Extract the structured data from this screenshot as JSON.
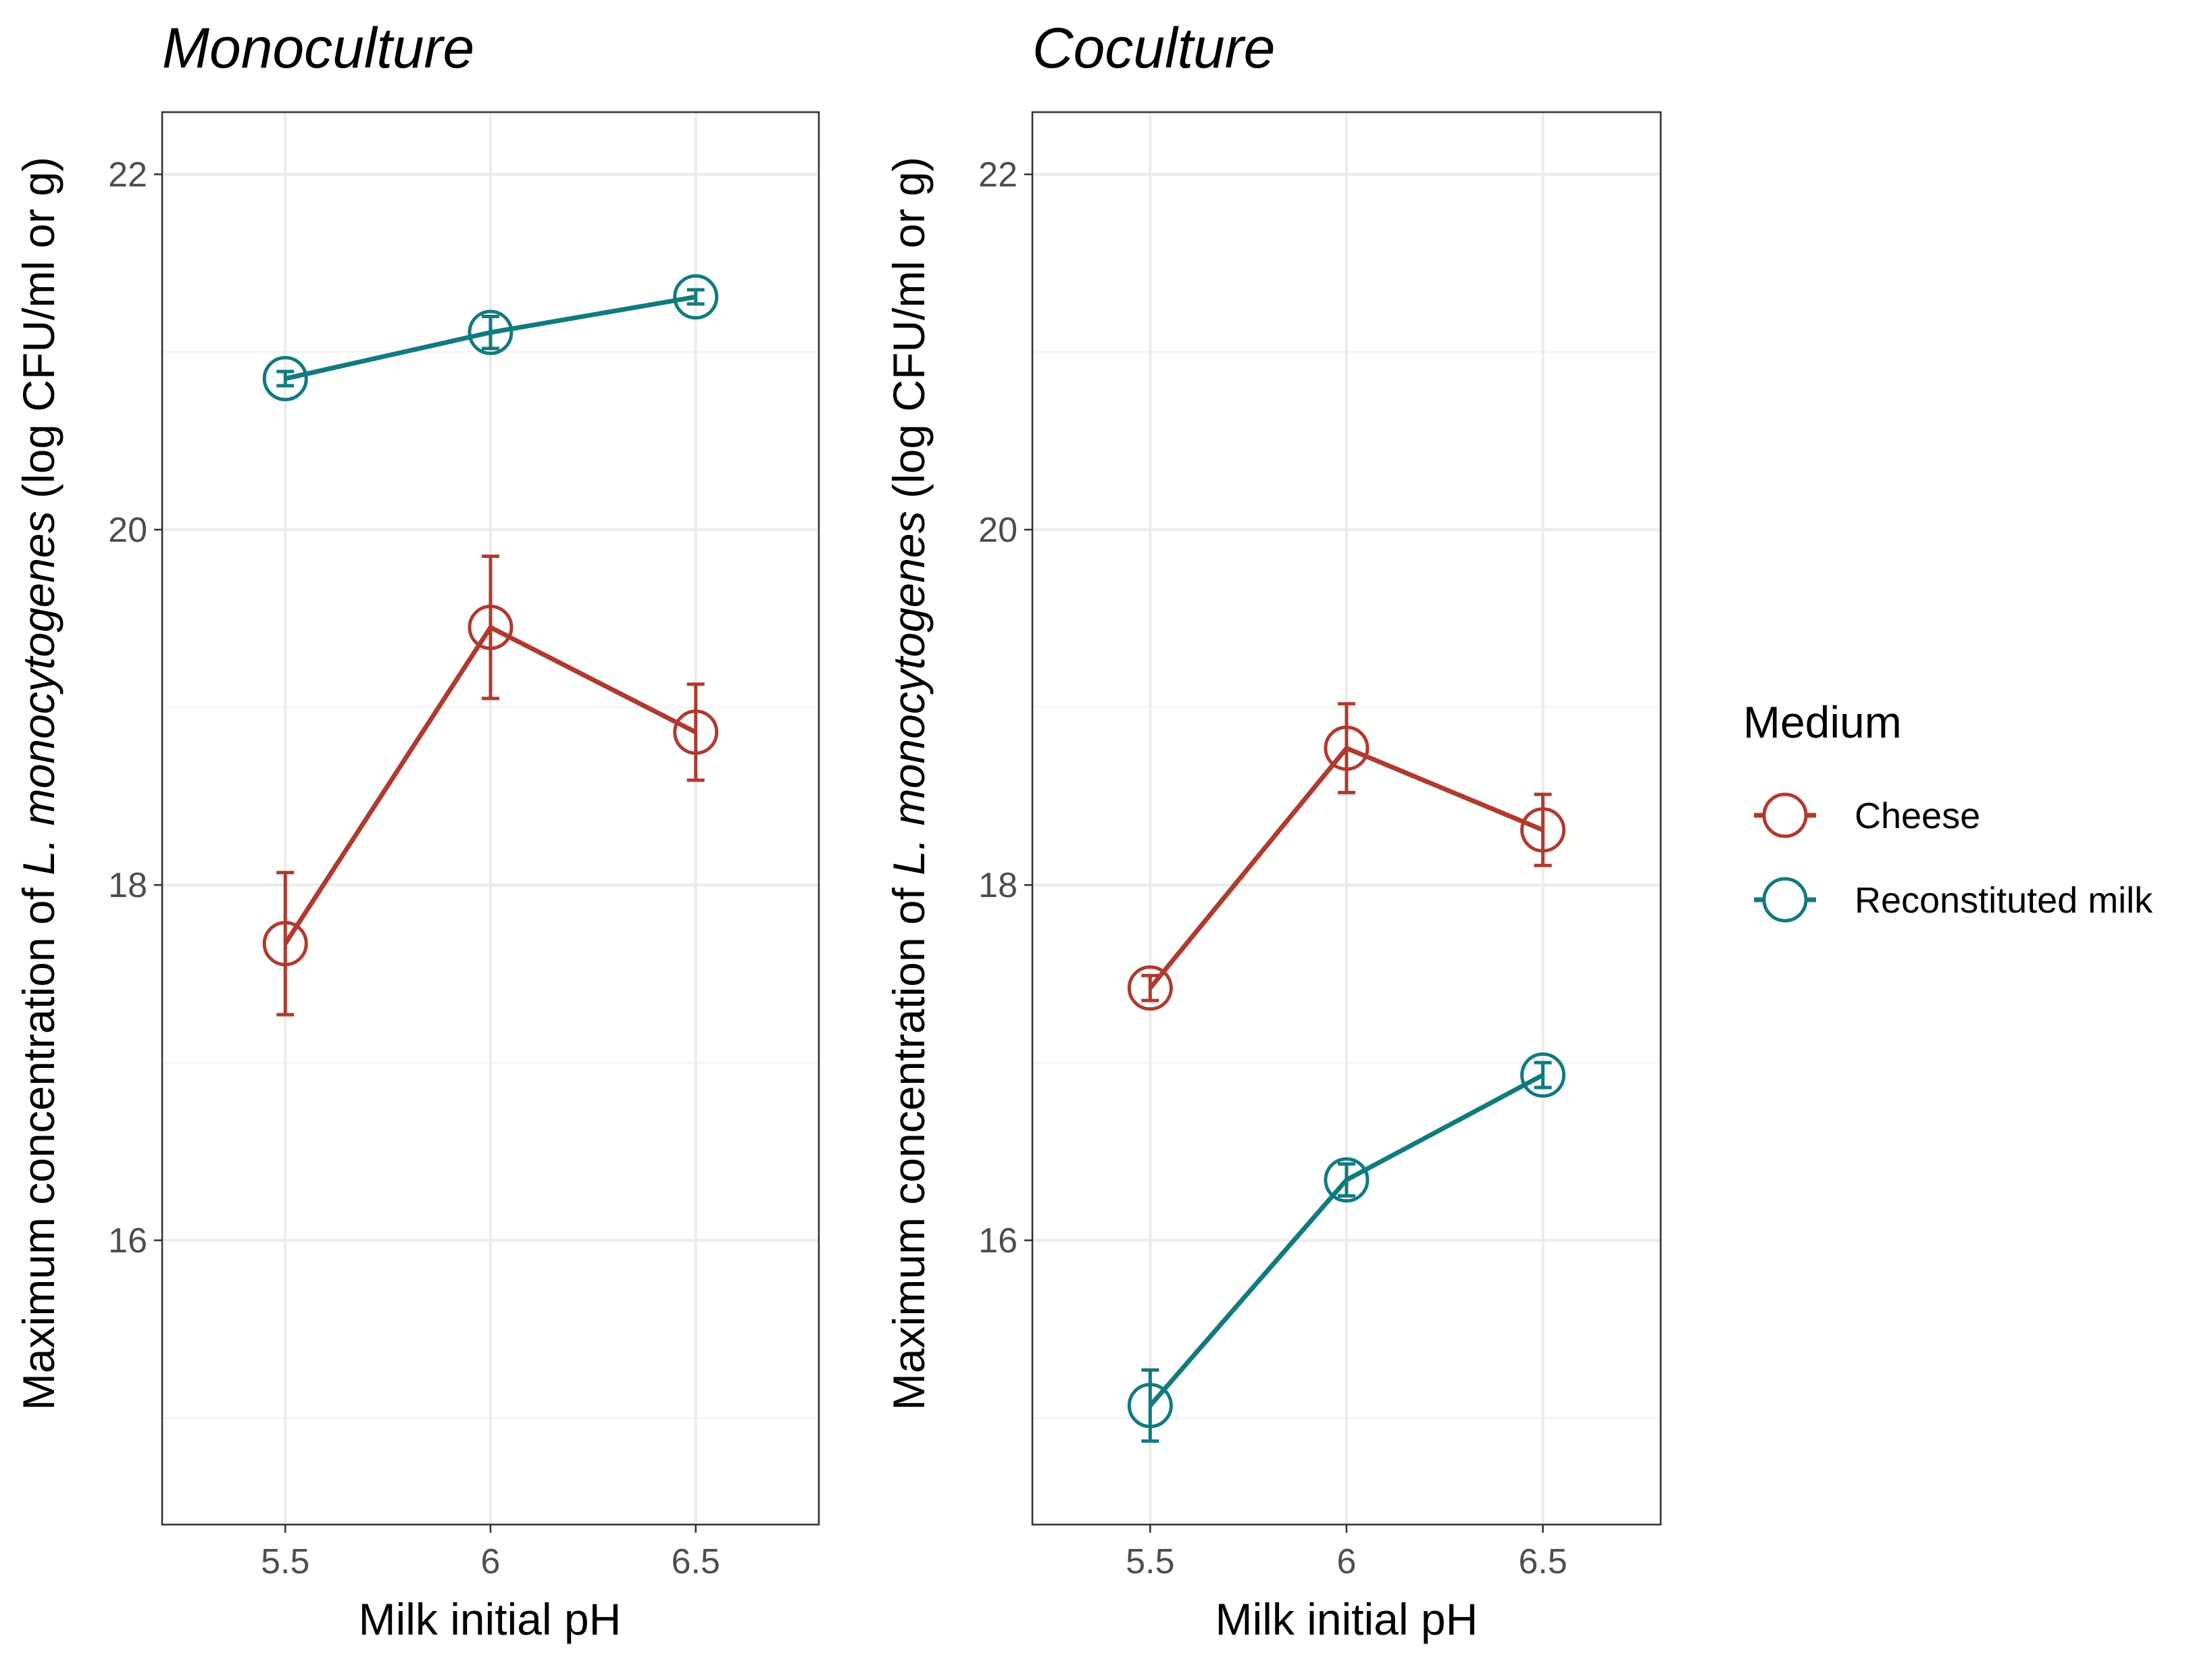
{
  "legend": {
    "title": "Medium",
    "placement": "right",
    "entries": [
      {
        "key": "cheese",
        "label": "Cheese"
      },
      {
        "key": "milk",
        "label": "Reconstituted milk"
      }
    ]
  },
  "colors": {
    "cheese": "#b03a2e",
    "milk": "#117a80"
  },
  "chart_data": [
    {
      "type": "line",
      "title": "Monoculture",
      "xlabel": "Milk initial pH",
      "ylabel_prefix": "Maximum concentration of ",
      "ylabel_italic": "L. monocytogenes",
      "ylabel_suffix": " (log CFU/ml or g)",
      "x": [
        5.5,
        6,
        6.5
      ],
      "x_tick_labels": [
        "5.5",
        "6",
        "6.5"
      ],
      "y_ticks": [
        16,
        18,
        20,
        22
      ],
      "y_tick_labels": [
        "16",
        "18",
        "20",
        "22"
      ],
      "xlim": [
        5.2,
        6.8
      ],
      "ylim": [
        14.4,
        22.35
      ],
      "grid": true,
      "series": [
        {
          "key": "cheese",
          "name": "Cheese",
          "values": [
            17.67,
            19.45,
            18.86
          ],
          "err_low": [
            17.27,
            19.05,
            18.59
          ],
          "err_high": [
            18.07,
            19.85,
            19.13
          ]
        },
        {
          "key": "milk",
          "name": "Reconstituted milk",
          "values": [
            20.85,
            21.11,
            21.31
          ],
          "err_low": [
            20.81,
            21.02,
            21.27
          ],
          "err_high": [
            20.89,
            21.2,
            21.35
          ]
        }
      ]
    },
    {
      "type": "line",
      "title": "Coculture",
      "xlabel": "Milk initial pH",
      "ylabel_prefix": "Maximum concentration of ",
      "ylabel_italic": "L. monocytogenes",
      "ylabel_suffix": " (log CFU/ml or g)",
      "x": [
        5.5,
        6,
        6.5
      ],
      "x_tick_labels": [
        "5.5",
        "6",
        "6.5"
      ],
      "y_ticks": [
        16,
        18,
        20,
        22
      ],
      "y_tick_labels": [
        "16",
        "18",
        "20",
        "22"
      ],
      "xlim": [
        5.2,
        6.8
      ],
      "ylim": [
        14.4,
        22.35
      ],
      "grid": true,
      "series": [
        {
          "key": "cheese",
          "name": "Cheese",
          "values": [
            17.42,
            18.77,
            18.31
          ],
          "err_low": [
            17.35,
            18.52,
            18.11
          ],
          "err_high": [
            17.49,
            19.02,
            18.51
          ]
        },
        {
          "key": "milk",
          "name": "Reconstituted milk",
          "values": [
            15.07,
            16.34,
            16.93
          ],
          "err_low": [
            14.87,
            16.25,
            16.86
          ],
          "err_high": [
            15.27,
            16.43,
            17.0
          ]
        }
      ]
    }
  ]
}
